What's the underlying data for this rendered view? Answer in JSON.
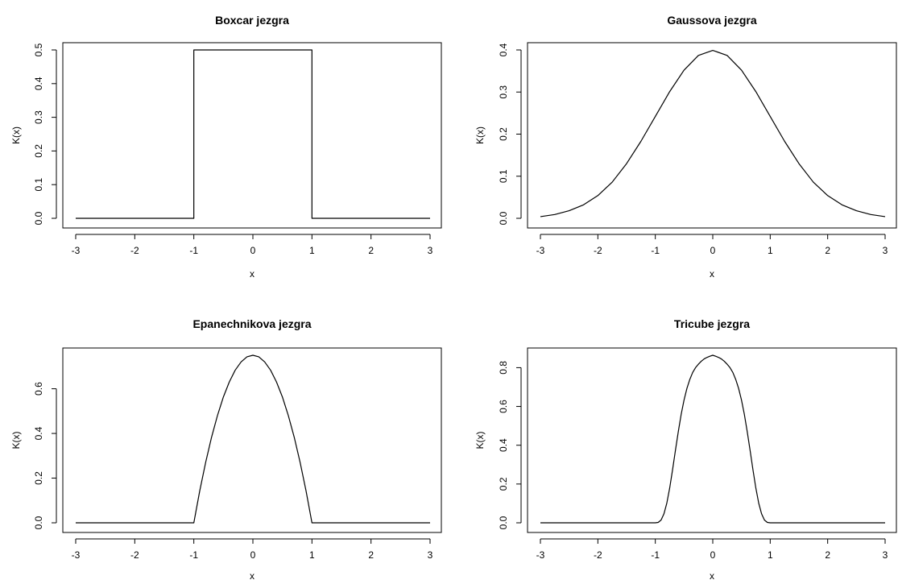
{
  "figure": {
    "background": "#ffffff",
    "line_color": "#000000"
  },
  "chart_data": [
    {
      "type": "line",
      "title": "Boxcar jezgra",
      "xlabel": "x",
      "ylabel": "K(x)",
      "xlim": [
        -3,
        3
      ],
      "ylim": [
        0,
        0.5
      ],
      "x_ticks": [
        -3,
        -2,
        -1,
        0,
        1,
        2,
        3
      ],
      "x_tick_labels": [
        "-3",
        "-2",
        "-1",
        "0",
        "1",
        "2",
        "3"
      ],
      "y_ticks": [
        0,
        0.1,
        0.2,
        0.3,
        0.4,
        0.5
      ],
      "y_tick_labels": [
        "0.0",
        "0.1",
        "0.2",
        "0.3",
        "0.4",
        "0.5"
      ],
      "grid": false,
      "series": [
        {
          "x": [
            -3,
            -1,
            -1,
            1,
            1,
            3
          ],
          "y": [
            0,
            0,
            0.5,
            0.5,
            0,
            0
          ]
        }
      ]
    },
    {
      "type": "line",
      "title": "Gaussova jezgra",
      "xlabel": "x",
      "ylabel": "K(x)",
      "xlim": [
        -3,
        3
      ],
      "ylim": [
        0,
        0.4
      ],
      "x_ticks": [
        -3,
        -2,
        -1,
        0,
        1,
        2,
        3
      ],
      "x_tick_labels": [
        "-3",
        "-2",
        "-1",
        "0",
        "1",
        "2",
        "3"
      ],
      "y_ticks": [
        0,
        0.1,
        0.2,
        0.3,
        0.4
      ],
      "y_tick_labels": [
        "0.0",
        "0.1",
        "0.2",
        "0.3",
        "0.4"
      ],
      "grid": false,
      "series": [
        {
          "x": [
            -3,
            -2.75,
            -2.5,
            -2.25,
            -2,
            -1.75,
            -1.5,
            -1.25,
            -1,
            -0.75,
            -0.5,
            -0.25,
            0,
            0.25,
            0.5,
            0.75,
            1,
            1.25,
            1.5,
            1.75,
            2,
            2.25,
            2.5,
            2.75,
            3
          ],
          "y": [
            0.004,
            0.009,
            0.018,
            0.032,
            0.054,
            0.086,
            0.13,
            0.183,
            0.242,
            0.301,
            0.352,
            0.387,
            0.399,
            0.387,
            0.352,
            0.301,
            0.242,
            0.183,
            0.13,
            0.086,
            0.054,
            0.032,
            0.018,
            0.009,
            0.004
          ]
        }
      ]
    },
    {
      "type": "line",
      "title": "Epanechnikova jezgra",
      "xlabel": "x",
      "ylabel": "K(x)",
      "xlim": [
        -3,
        3
      ],
      "ylim": [
        0,
        0.75
      ],
      "x_ticks": [
        -3,
        -2,
        -1,
        0,
        1,
        2,
        3
      ],
      "x_tick_labels": [
        "-3",
        "-2",
        "-1",
        "0",
        "1",
        "2",
        "3"
      ],
      "y_ticks": [
        0,
        0.2,
        0.4,
        0.6
      ],
      "y_tick_labels": [
        "0.0",
        "0.2",
        "0.4",
        "0.6"
      ],
      "grid": false,
      "series": [
        {
          "x": [
            -3,
            -1,
            -0.9,
            -0.8,
            -0.7,
            -0.6,
            -0.5,
            -0.4,
            -0.3,
            -0.2,
            -0.1,
            0,
            0.1,
            0.2,
            0.3,
            0.4,
            0.5,
            0.6,
            0.7,
            0.8,
            0.9,
            1,
            3
          ],
          "y": [
            0,
            0,
            0.143,
            0.27,
            0.383,
            0.48,
            0.563,
            0.63,
            0.683,
            0.72,
            0.743,
            0.75,
            0.743,
            0.72,
            0.683,
            0.63,
            0.563,
            0.48,
            0.383,
            0.27,
            0.143,
            0,
            0
          ]
        }
      ]
    },
    {
      "type": "line",
      "title": "Tricube jezgra",
      "xlabel": "x",
      "ylabel": "K(x)",
      "xlim": [
        -3,
        3
      ],
      "ylim": [
        0,
        0.864
      ],
      "x_ticks": [
        -3,
        -2,
        -1,
        0,
        1,
        2,
        3
      ],
      "x_tick_labels": [
        "-3",
        "-2",
        "-1",
        "0",
        "1",
        "2",
        "3"
      ],
      "y_ticks": [
        0,
        0.2,
        0.4,
        0.6,
        0.8
      ],
      "y_tick_labels": [
        "0.0",
        "0.2",
        "0.4",
        "0.6",
        "0.8"
      ],
      "grid": false,
      "series": [
        {
          "x": [
            -3,
            -1,
            -0.95,
            -0.9,
            -0.85,
            -0.8,
            -0.75,
            -0.7,
            -0.65,
            -0.6,
            -0.55,
            -0.5,
            -0.45,
            -0.4,
            -0.35,
            -0.3,
            -0.25,
            -0.2,
            -0.15,
            -0.1,
            -0.05,
            0,
            0.05,
            0.1,
            0.15,
            0.2,
            0.25,
            0.3,
            0.35,
            0.4,
            0.45,
            0.5,
            0.55,
            0.6,
            0.65,
            0.7,
            0.75,
            0.8,
            0.85,
            0.9,
            0.95,
            1,
            3
          ],
          "y": [
            0,
            0,
            0.002,
            0.014,
            0.046,
            0.101,
            0.179,
            0.273,
            0.373,
            0.47,
            0.559,
            0.633,
            0.693,
            0.739,
            0.775,
            0.8,
            0.818,
            0.833,
            0.845,
            0.853,
            0.859,
            0.864,
            0.859,
            0.853,
            0.845,
            0.833,
            0.818,
            0.8,
            0.775,
            0.739,
            0.693,
            0.633,
            0.559,
            0.47,
            0.373,
            0.273,
            0.179,
            0.101,
            0.046,
            0.014,
            0.002,
            0,
            0
          ]
        }
      ]
    }
  ]
}
